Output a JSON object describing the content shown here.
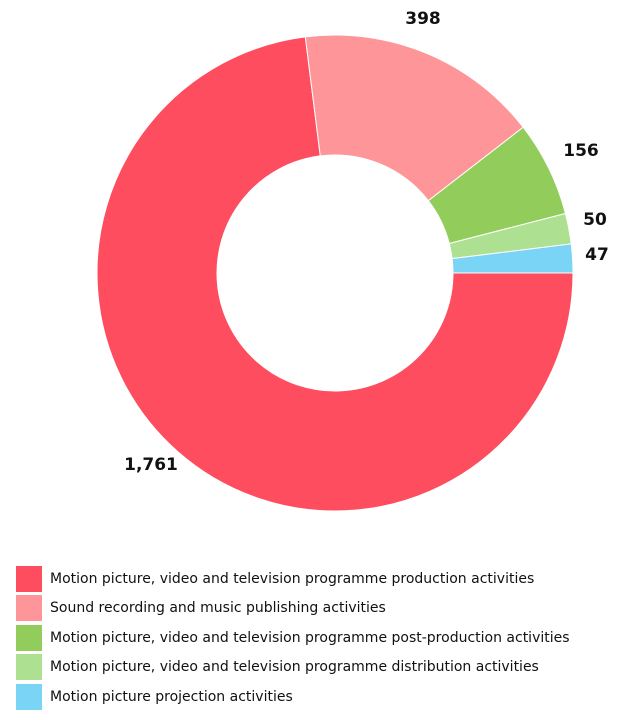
{
  "chart_data": {
    "type": "pie",
    "donut": true,
    "title": "",
    "categories": [
      "Motion picture, video and television programme production activities",
      "Sound recording and music publishing activities",
      "Motion picture, video and television programme post-production activities",
      "Motion picture, video and television programme distribution activities",
      "Motion picture projection activities"
    ],
    "values": [
      1761,
      398,
      156,
      50,
      47
    ],
    "value_labels": [
      "1,761",
      "398",
      "156",
      "50",
      "47"
    ],
    "colors": [
      "#fe4d5f",
      "#fe9599",
      "#92cd5b",
      "#aee092",
      "#7ad4f6"
    ],
    "legend_position": "bottom-left"
  }
}
